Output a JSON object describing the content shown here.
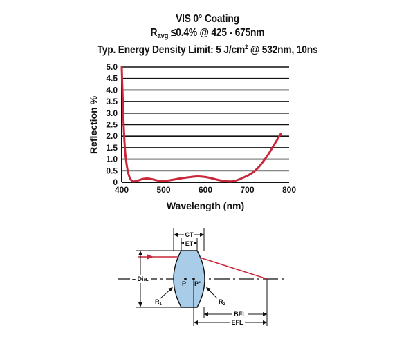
{
  "title": {
    "line1": "VIS 0° Coating",
    "line2_prefix": "R",
    "line2_sub": "avg",
    "line2_rest": " ≤0.4% @ 425 - 675nm",
    "line3_a": "Typ. Energy Density Limit: 5 J/cm",
    "line3_sup": "2",
    "line3_b": " @ 532nm, 10ns"
  },
  "chart_data": {
    "type": "line",
    "title": "VIS 0° Coating",
    "subtitle": "Ravg ≤0.4% @ 425 - 675nm",
    "note": "Typ. Energy Density Limit: 5 J/cm2 @ 532nm, 10ns",
    "xlabel": "Wavelength (nm)",
    "ylabel": "Reflection %",
    "xlim": [
      400,
      800
    ],
    "ylim": [
      0,
      5.0
    ],
    "xticks": [
      "400",
      "500",
      "600",
      "700",
      "800"
    ],
    "yticks": [
      "0",
      "0.5",
      "1.0",
      "1.5",
      "2.0",
      "2.5",
      "3.0",
      "3.5",
      "4.0",
      "4.5",
      "5.0"
    ],
    "grid": "horizontal",
    "series": [
      {
        "color": "#c8283a",
        "x": [
          400,
          402,
          405,
          408,
          412,
          416,
          420,
          425,
          430,
          440,
          450,
          460,
          470,
          480,
          490,
          500,
          520,
          540,
          560,
          580,
          600,
          620,
          640,
          660,
          670,
          680,
          690,
          700,
          710,
          720,
          730,
          740,
          750,
          760,
          770,
          780
        ],
        "y": [
          5.0,
          3.8,
          2.3,
          1.3,
          0.7,
          0.35,
          0.15,
          0.05,
          0.03,
          0.08,
          0.15,
          0.17,
          0.15,
          0.1,
          0.06,
          0.05,
          0.1,
          0.17,
          0.22,
          0.26,
          0.24,
          0.15,
          0.06,
          0.03,
          0.06,
          0.12,
          0.2,
          0.28,
          0.38,
          0.52,
          0.7,
          0.95,
          1.2,
          1.5,
          1.8,
          2.1
        ]
      }
    ]
  },
  "diagram": {
    "ct": "CT",
    "et": "ET",
    "dia": "Dia.",
    "p": "P",
    "p2": "P\"",
    "r1": "R",
    "r1_sub": "1",
    "r2": "R",
    "r2_sub": "2",
    "bfl": "BFL",
    "efl": "EFL",
    "lens_color": "#a9cde8",
    "ray_color": "#c8283a"
  }
}
